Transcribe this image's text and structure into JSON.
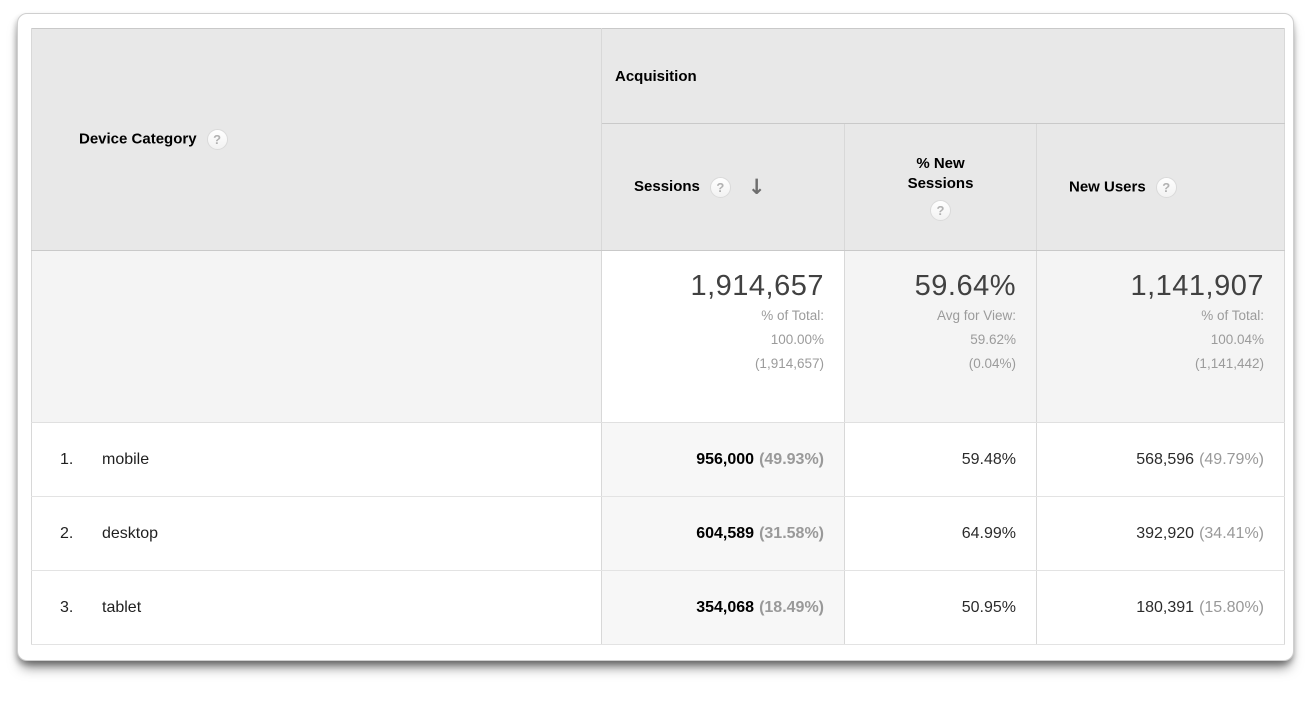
{
  "colors": {
    "header_bg": "#e8e8e8",
    "summary_bg": "#f4f4f4",
    "sorted_column_data_bg": "#f7f7f7",
    "border": "#d8d8d8",
    "muted_text": "#999999",
    "primary_text": "#000000"
  },
  "icons": {
    "help": "?",
    "sort_desc": "↓"
  },
  "table": {
    "dimension_header": "Device Category",
    "group_header": "Acquisition",
    "metric_headers": {
      "sessions": "Sessions",
      "pct_new_sessions": "% New Sessions",
      "new_users": "New Users"
    },
    "summary": {
      "sessions_value": "1,914,657",
      "sessions_line1": "% of Total:",
      "sessions_line2": "100.00%",
      "sessions_line3": "(1,914,657)",
      "pns_value": "59.64%",
      "pns_line1": "Avg for View:",
      "pns_line2": "59.62%",
      "pns_line3": "(0.04%)",
      "nu_value": "1,141,907",
      "nu_line1": "% of Total:",
      "nu_line2": "100.04%",
      "nu_line3": "(1,141,442)"
    },
    "rows": [
      {
        "index": "1.",
        "name": "mobile",
        "sessions": "956,000",
        "sessions_pct": "(49.93%)",
        "pct_new_sessions": "59.48%",
        "new_users": "568,596",
        "new_users_pct": "(49.79%)"
      },
      {
        "index": "2.",
        "name": "desktop",
        "sessions": "604,589",
        "sessions_pct": "(31.58%)",
        "pct_new_sessions": "64.99%",
        "new_users": "392,920",
        "new_users_pct": "(34.41%)"
      },
      {
        "index": "3.",
        "name": "tablet",
        "sessions": "354,068",
        "sessions_pct": "(18.49%)",
        "pct_new_sessions": "50.95%",
        "new_users": "180,391",
        "new_users_pct": "(15.80%)"
      }
    ]
  }
}
